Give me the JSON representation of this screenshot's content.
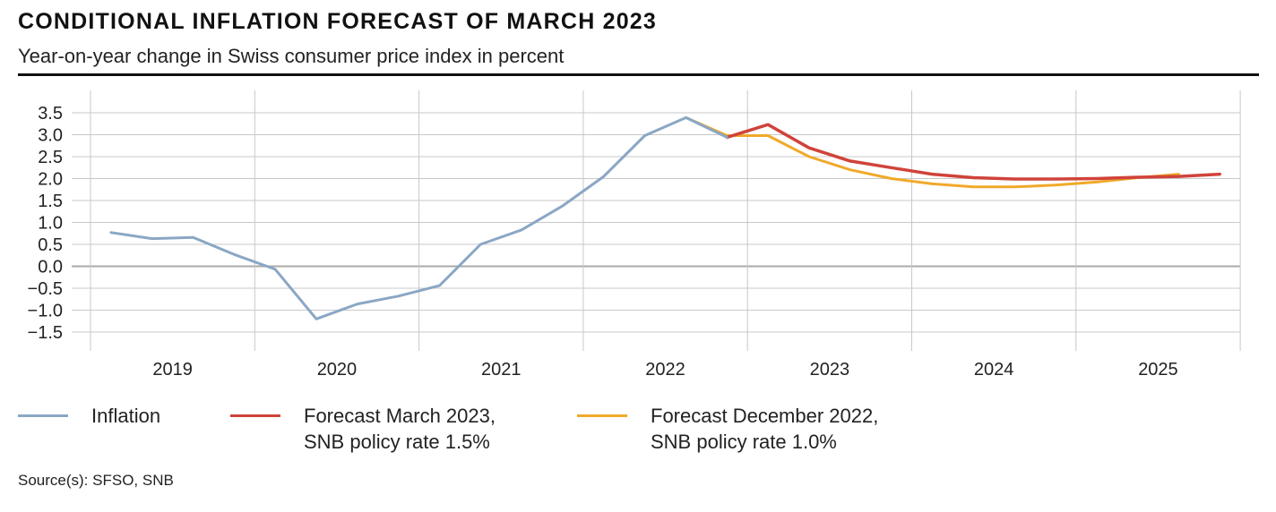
{
  "header": {
    "title": "CONDITIONAL INFLATION FORECAST OF MARCH 2023",
    "subtitle": "Year-on-year change in Swiss consumer price index in percent"
  },
  "legend": [
    {
      "label_line1": "Inflation",
      "label_line2": ""
    },
    {
      "label_line1": "Forecast March 2023,",
      "label_line2": "SNB policy rate 1.5%"
    },
    {
      "label_line1": "Forecast December 2022,",
      "label_line2": "SNB policy rate 1.0%"
    }
  ],
  "footer": {
    "source": "Source(s): SFSO, SNB"
  },
  "colors": {
    "inflation": "#8aa7c4",
    "forecast_march": "#d0433a",
    "forecast_december": "#f0a92a",
    "grid": "#c8c8c8",
    "zero_line": "#aaaaaa"
  },
  "chart_data": {
    "type": "line",
    "xlabel": "",
    "ylabel": "",
    "ylim": [
      -1.5,
      3.5
    ],
    "y_ticks": [
      3.5,
      3.0,
      2.5,
      2.0,
      1.5,
      1.0,
      0.5,
      0.0,
      -0.5,
      -1.0,
      -1.5
    ],
    "y_tick_labels": [
      "3.5",
      "3.0",
      "2.5",
      "2.0",
      "1.5",
      "1.0",
      "0.5",
      "0.0",
      "−0.5",
      "−1.0",
      "−1.5"
    ],
    "x_categories": [
      "2019",
      "2020",
      "2021",
      "2022",
      "2023",
      "2024",
      "2025"
    ],
    "x_unit": "quarter index within year (0.5 = Q1, 3.5 = Q4) offset from 2019 start",
    "grid": true,
    "series": [
      {
        "name": "Inflation",
        "points": [
          [
            "2019-Q1",
            0.77
          ],
          [
            "2019-Q2",
            0.63
          ],
          [
            "2019-Q3",
            0.66
          ],
          [
            "2019-Q4",
            0.27
          ],
          [
            "2020-Q1",
            -0.07
          ],
          [
            "2020-Q2",
            -1.2
          ],
          [
            "2020-Q3",
            -0.86
          ],
          [
            "2020-Q4",
            -0.68
          ],
          [
            "2021-Q1",
            -0.44
          ],
          [
            "2021-Q2",
            0.5
          ],
          [
            "2021-Q3",
            0.83
          ],
          [
            "2021-Q4",
            1.38
          ],
          [
            "2022-Q1",
            2.05
          ],
          [
            "2022-Q2",
            2.98
          ],
          [
            "2022-Q3",
            3.39
          ],
          [
            "2022-Q4",
            2.94
          ]
        ]
      },
      {
        "name": "Forecast March 2023, SNB policy rate 1.5%",
        "points": [
          [
            "2022-Q4",
            2.94
          ],
          [
            "2023-Q1",
            3.23
          ],
          [
            "2023-Q2",
            2.7
          ],
          [
            "2023-Q3",
            2.4
          ],
          [
            "2023-Q4",
            2.25
          ],
          [
            "2024-Q1",
            2.1
          ],
          [
            "2024-Q2",
            2.02
          ],
          [
            "2024-Q3",
            1.99
          ],
          [
            "2024-Q4",
            1.99
          ],
          [
            "2025-Q1",
            2.0
          ],
          [
            "2025-Q2",
            2.03
          ],
          [
            "2025-Q3",
            2.05
          ],
          [
            "2025-Q4",
            2.1
          ]
        ]
      },
      {
        "name": "Forecast December 2022, SNB policy rate 1.0%",
        "points": [
          [
            "2022-Q3",
            3.39
          ],
          [
            "2022-Q4",
            2.98
          ],
          [
            "2023-Q1",
            2.98
          ],
          [
            "2023-Q2",
            2.5
          ],
          [
            "2023-Q3",
            2.2
          ],
          [
            "2023-Q4",
            2.0
          ],
          [
            "2024-Q1",
            1.88
          ],
          [
            "2024-Q2",
            1.81
          ],
          [
            "2024-Q3",
            1.81
          ],
          [
            "2024-Q4",
            1.85
          ],
          [
            "2025-Q1",
            1.92
          ],
          [
            "2025-Q2",
            2.02
          ],
          [
            "2025-Q3",
            2.1
          ]
        ]
      }
    ]
  }
}
